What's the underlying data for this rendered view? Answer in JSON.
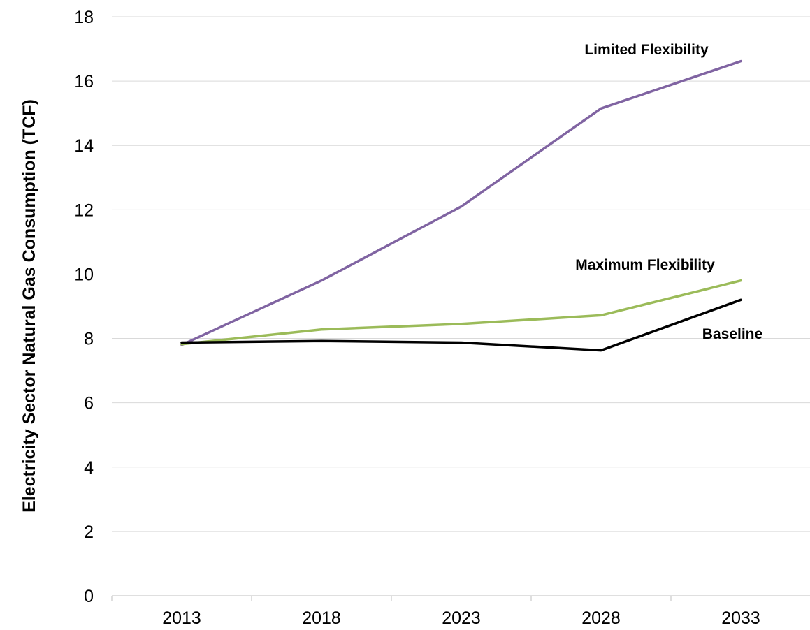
{
  "chart_data": {
    "type": "line",
    "title": "",
    "xlabel": "",
    "ylabel": "Electricity Sector Natural Gas Consumption (TCF)",
    "x": [
      "2013",
      "2018",
      "2023",
      "2028",
      "2033"
    ],
    "ylim": [
      0,
      18
    ],
    "yticks": [
      "0",
      "2",
      "4",
      "6",
      "8",
      "10",
      "12",
      "14",
      "16",
      "18"
    ],
    "grid": "horizontal",
    "series": [
      {
        "name": "Limited Flexibility",
        "color": "#8064a2",
        "values": [
          7.8,
          9.8,
          12.1,
          15.15,
          16.62
        ]
      },
      {
        "name": "Maximum Flexibility",
        "color": "#9bbb59",
        "values": [
          7.82,
          8.28,
          8.45,
          8.72,
          9.8
        ]
      },
      {
        "name": "Baseline",
        "color": "#000000",
        "values": [
          7.87,
          7.92,
          7.87,
          7.63,
          9.2
        ]
      }
    ]
  }
}
